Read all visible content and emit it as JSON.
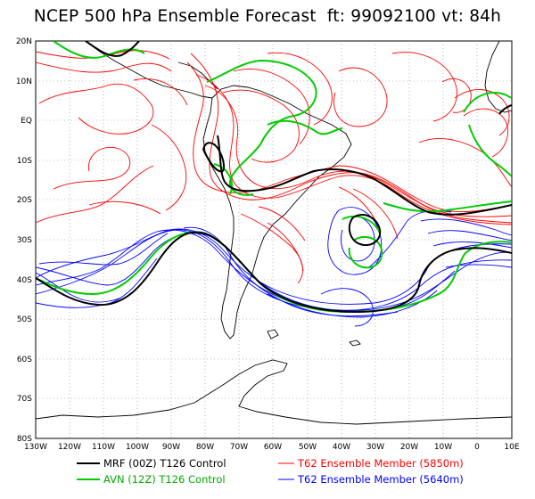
{
  "title": "NCEP 500 hPa Ensemble Forecast  ft: 99092100 vt: 84h",
  "axes": {
    "lat_labels": [
      "20N",
      "10N",
      "EQ",
      "10S",
      "20S",
      "30S",
      "40S",
      "50S",
      "60S",
      "70S",
      "80S"
    ],
    "lon_labels": [
      "130W",
      "120W",
      "110W",
      "100W",
      "90W",
      "80W",
      "70W",
      "60W",
      "50W",
      "40W",
      "30W",
      "20W",
      "10W",
      "0",
      "10E"
    ]
  },
  "legend": [
    {
      "label": "MRF (00Z) T126 Control",
      "color": "#000000"
    },
    {
      "label": "AVN (12Z) T126 Control",
      "color": "#00cc00"
    },
    {
      "label": "T62 Ensemble Member (5850m)",
      "color": "#ff0000"
    },
    {
      "label": "T62 Ensemble Member (5640m)",
      "color": "#0000ff"
    }
  ],
  "colors": {
    "mrf": "#000000",
    "avn": "#00cc00",
    "red": "#ff0000",
    "blue": "#0000ff",
    "coast": "#000000",
    "grid": "#888888"
  }
}
